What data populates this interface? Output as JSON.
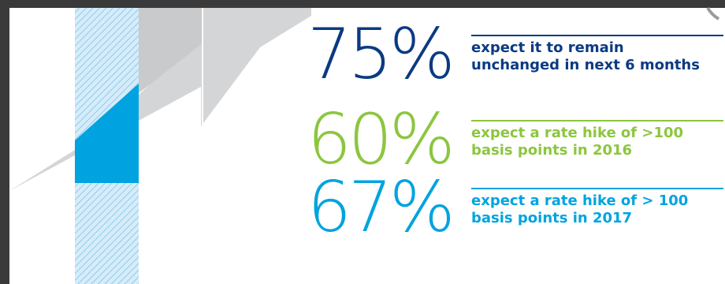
{
  "colors": {
    "navy": "#0b3a82",
    "green": "#8cc63f",
    "cyan": "#00a3e0",
    "gray": "#d4d5d7",
    "hatch": "#a8d7f2",
    "dark": "#3a3a3a"
  },
  "stats": [
    {
      "value": "75%",
      "line1": "expect it to remain",
      "line2": "unchanged in next 6 months",
      "color": "#0b3a82"
    },
    {
      "value": "60%",
      "line1": "expect a rate hike of >100",
      "line2": "basis points in 2016",
      "color": "#8cc63f"
    },
    {
      "value": "67%",
      "line1": "expect a rate hike of > 100",
      "line2": "basis points in 2017",
      "color": "#00a3e0"
    }
  ]
}
